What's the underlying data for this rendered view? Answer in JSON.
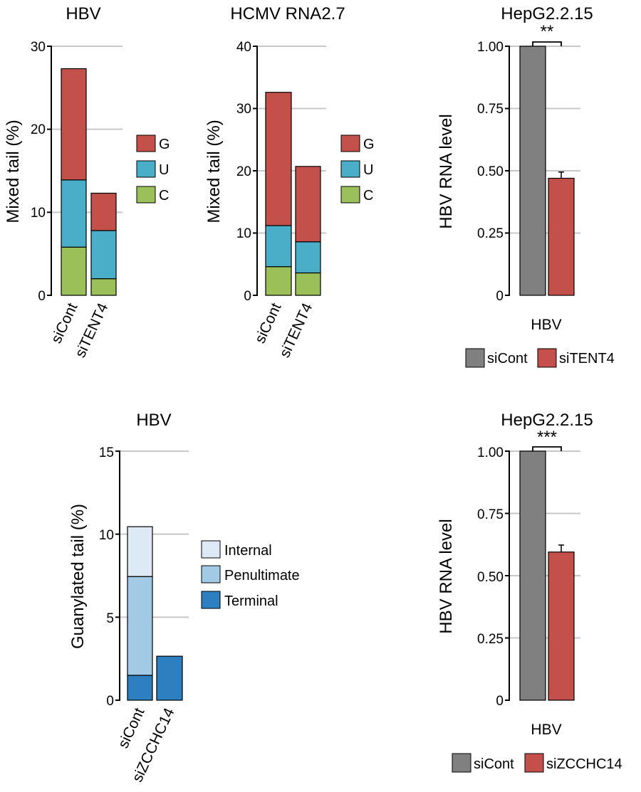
{
  "chart_data": [
    {
      "id": "hbv-mixed",
      "type": "bar",
      "stacked": true,
      "title": "HBV",
      "ylabel": "Mixed tail (%)",
      "ylim": [
        0,
        30
      ],
      "yticks": [
        0,
        10,
        20,
        30
      ],
      "categories": [
        "siCont",
        "siTENT4"
      ],
      "series": [
        {
          "name": "C",
          "color": "#9bc05a",
          "values": [
            5.8,
            2.0
          ]
        },
        {
          "name": "U",
          "color": "#4aaec8",
          "values": [
            8.1,
            5.8
          ]
        },
        {
          "name": "G",
          "color": "#c4504c",
          "values": [
            13.4,
            4.5
          ]
        }
      ],
      "legend": [
        "G",
        "U",
        "C"
      ]
    },
    {
      "id": "hcmv-mixed",
      "type": "bar",
      "stacked": true,
      "title": "HCMV RNA2.7",
      "ylabel": "Mixed tail (%)",
      "ylim": [
        0,
        40
      ],
      "yticks": [
        0,
        10,
        20,
        30,
        40
      ],
      "categories": [
        "siCont",
        "siTENT4"
      ],
      "series": [
        {
          "name": "C",
          "color": "#9bc05a",
          "values": [
            4.6,
            3.6
          ]
        },
        {
          "name": "U",
          "color": "#4aaec8",
          "values": [
            6.6,
            5.0
          ]
        },
        {
          "name": "G",
          "color": "#c4504c",
          "values": [
            21.4,
            12.1
          ]
        }
      ],
      "legend": [
        "G",
        "U",
        "C"
      ]
    },
    {
      "id": "hepg2-tent4",
      "type": "bar",
      "title": "HepG2.2.15",
      "ylabel": "HBV RNA level",
      "xlabel": "HBV",
      "ylim": [
        0,
        1.0
      ],
      "yticks": [
        "0",
        "0.25",
        "0.50",
        "0.75",
        "1.00"
      ],
      "categories": [
        "siCont",
        "siTENT4"
      ],
      "colors": [
        "#808080",
        "#c4504c"
      ],
      "values": [
        1.0,
        0.47
      ],
      "errors": [
        0,
        0.025
      ],
      "significance": "**",
      "legend": [
        "siCont",
        "siTENT4"
      ]
    },
    {
      "id": "hbv-guanylated",
      "type": "bar",
      "stacked": true,
      "title": "HBV",
      "ylabel": "Guanylated tail (%)",
      "ylim": [
        0,
        15
      ],
      "yticks": [
        0,
        5,
        10,
        15
      ],
      "categories": [
        "siCont",
        "siZCCHC14"
      ],
      "series": [
        {
          "name": "Terminal",
          "color": "#2e7fc0",
          "values": [
            1.5,
            2.65
          ]
        },
        {
          "name": "Penultimate",
          "color": "#a2cae4",
          "values": [
            5.95,
            0
          ]
        },
        {
          "name": "Internal",
          "color": "#ddeaf6",
          "values": [
            3.0,
            0
          ]
        }
      ],
      "legend": [
        "Internal",
        "Penultimate",
        "Terminal"
      ]
    },
    {
      "id": "hepg2-zcchc14",
      "type": "bar",
      "title": "HepG2.2.15",
      "ylabel": "HBV RNA level",
      "xlabel": "HBV",
      "ylim": [
        0,
        1.0
      ],
      "yticks": [
        "0",
        "0.25",
        "0.50",
        "0.75",
        "1.00"
      ],
      "categories": [
        "siCont",
        "siZCCHC14"
      ],
      "colors": [
        "#808080",
        "#c4504c"
      ],
      "values": [
        1.0,
        0.595
      ],
      "errors": [
        0,
        0.028
      ],
      "significance": "***",
      "legend": [
        "siCont",
        "siZCCHC14"
      ]
    }
  ]
}
